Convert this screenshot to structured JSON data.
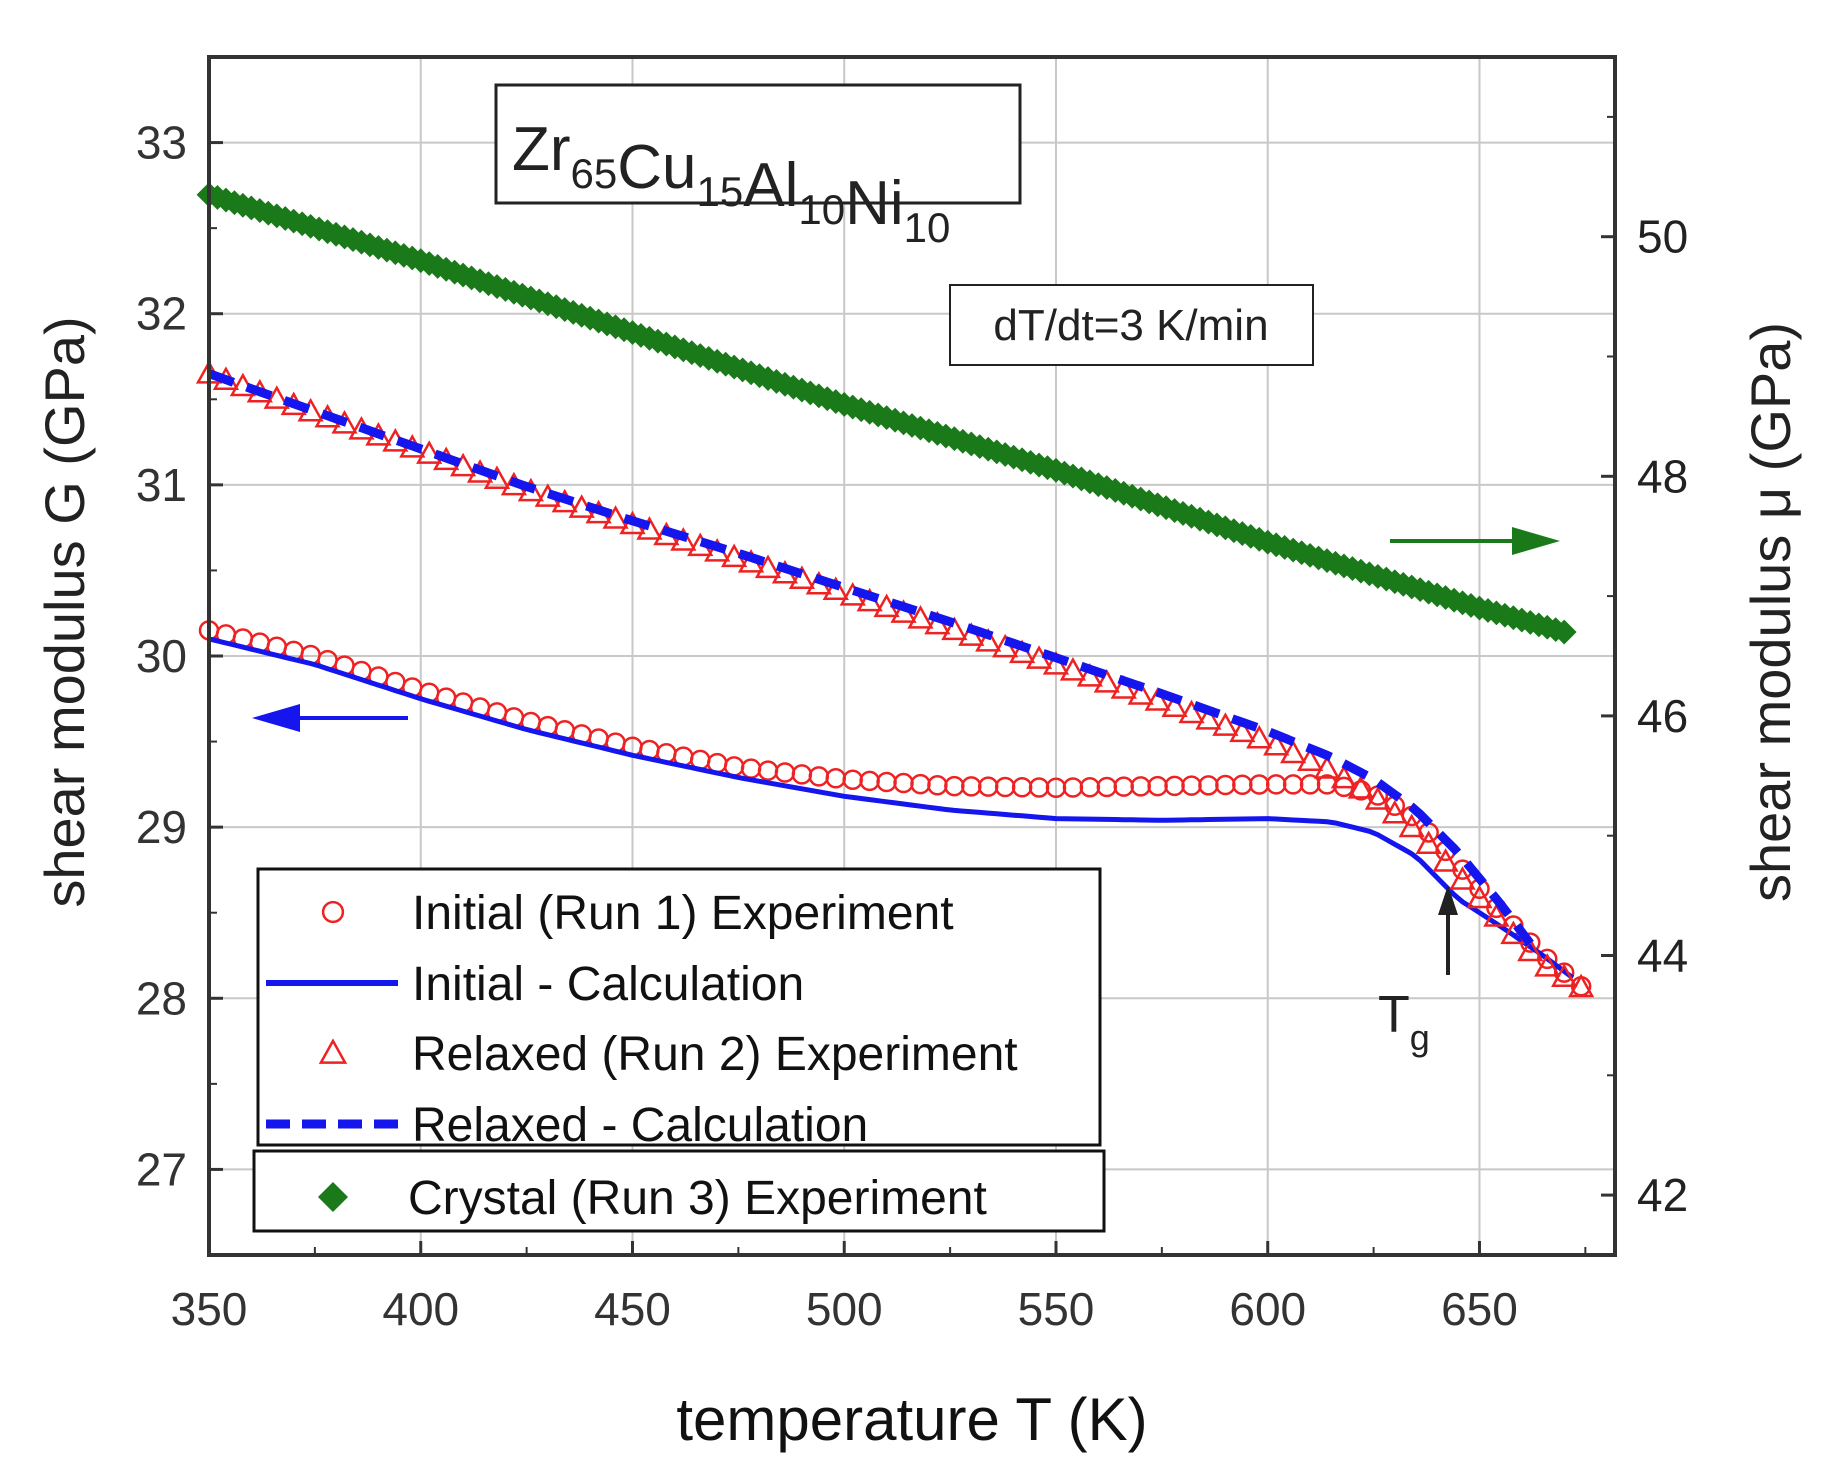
{
  "chart_data": {
    "type": "scatter",
    "title_box": {
      "parts": [
        {
          "text": "Zr",
          "sub": "65"
        },
        {
          "text": "Cu",
          "sub": "15"
        },
        {
          "text": "Al",
          "sub": "10"
        },
        {
          "text": "Ni",
          "sub": "10"
        }
      ]
    },
    "rate_label": "dT/dt=3 K/min",
    "xlabel": "temperature T (K)",
    "ylabel_left": "shear modulus G (GPa)",
    "ylabel_right": "shear modulus μ  (GPa)",
    "xlim": [
      350,
      682
    ],
    "ylim_left": [
      26.5,
      33.5
    ],
    "ylim_right": [
      41.5,
      51.5
    ],
    "x_ticks": [
      "350",
      "400",
      "450",
      "500",
      "550",
      "600",
      "650"
    ],
    "y_left_ticks": [
      "27",
      "28",
      "29",
      "30",
      "31",
      "32",
      "33"
    ],
    "y_right_ticks": [
      "42",
      "44",
      "46",
      "48",
      "50"
    ],
    "tg_label": {
      "text": "T",
      "sub": "g",
      "x": 641
    },
    "colors": {
      "red": "#ee2222",
      "blue": "#1515ee",
      "green": "#1a7a1a",
      "axis": "#333333",
      "grid": "#c8c8c8"
    },
    "series": [
      {
        "name": "Initial (Run 1) Experiment",
        "axis": "left",
        "marker": "circle",
        "color": "#ee2222",
        "x": [
          350,
          375,
          400,
          425,
          450,
          475,
          500,
          525,
          550,
          575,
          600,
          615,
          625,
          635,
          645,
          655,
          665,
          675
        ],
        "y": [
          30.15,
          30.0,
          29.8,
          29.62,
          29.47,
          29.35,
          29.28,
          29.24,
          29.23,
          29.24,
          29.25,
          29.25,
          29.2,
          29.05,
          28.78,
          28.5,
          28.25,
          28.05
        ]
      },
      {
        "name": "Initial - Calculation",
        "axis": "left",
        "marker": "line",
        "color": "#1515ee",
        "x": [
          350,
          375,
          400,
          425,
          450,
          475,
          500,
          525,
          550,
          575,
          600,
          615,
          625,
          635,
          645,
          655,
          665,
          672
        ],
        "y": [
          30.1,
          29.95,
          29.75,
          29.57,
          29.42,
          29.29,
          29.18,
          29.1,
          29.05,
          29.04,
          29.05,
          29.03,
          28.97,
          28.83,
          28.58,
          28.42,
          28.25,
          28.12
        ]
      },
      {
        "name": "Relaxed (Run 2) Experiment",
        "axis": "left",
        "marker": "triangle",
        "color": "#ee2222",
        "x": [
          350,
          375,
          400,
          425,
          450,
          475,
          500,
          525,
          550,
          575,
          600,
          615,
          625,
          635,
          645,
          655,
          665,
          675
        ],
        "y": [
          31.65,
          31.42,
          31.2,
          30.97,
          30.77,
          30.57,
          30.37,
          30.16,
          29.95,
          29.73,
          29.5,
          29.33,
          29.18,
          28.98,
          28.72,
          28.45,
          28.2,
          28.05
        ]
      },
      {
        "name": "Relaxed - Calculation",
        "axis": "left",
        "marker": "dash",
        "color": "#1515ee",
        "x": [
          350,
          375,
          400,
          425,
          450,
          475,
          500,
          525,
          550,
          575,
          600,
          615,
          625,
          635,
          645,
          655,
          662
        ],
        "y": [
          31.65,
          31.43,
          31.21,
          30.99,
          30.79,
          30.6,
          30.4,
          30.2,
          29.99,
          29.78,
          29.56,
          29.41,
          29.28,
          29.1,
          28.85,
          28.55,
          28.32
        ]
      },
      {
        "name": "Crystal (Run 3) Experiment",
        "axis": "right",
        "marker": "diamond",
        "color": "#1a7a1a",
        "x": [
          350,
          400,
          450,
          500,
          550,
          600,
          650,
          670
        ],
        "y": [
          50.35,
          49.8,
          49.2,
          48.6,
          48.05,
          47.45,
          46.9,
          46.7
        ]
      }
    ]
  }
}
